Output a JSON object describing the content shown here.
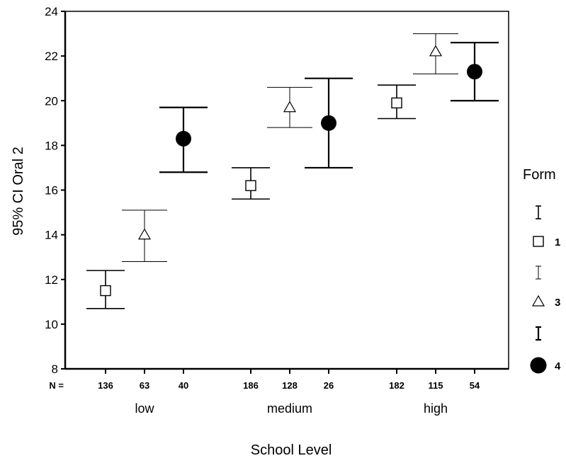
{
  "chart_data": {
    "type": "scatter",
    "subtype": "error-bar",
    "xlabel": "School Level",
    "ylabel": "95% CI Oral 2",
    "ylim": [
      8,
      24
    ],
    "yticks": [
      8,
      10,
      12,
      14,
      16,
      18,
      20,
      22,
      24
    ],
    "categories": [
      "low",
      "medium",
      "high"
    ],
    "n_prefix": "N =",
    "legend": {
      "title": "Form",
      "position": "right"
    },
    "series": [
      {
        "name": "1",
        "marker": "square",
        "n": [
          "136",
          "186",
          "182"
        ],
        "mean": [
          11.5,
          16.2,
          19.9
        ],
        "lower": [
          10.7,
          15.6,
          19.2
        ],
        "upper": [
          12.4,
          17.0,
          20.7
        ]
      },
      {
        "name": "3",
        "marker": "triangle",
        "n": [
          "63",
          "128",
          "115"
        ],
        "mean": [
          14.0,
          19.7,
          22.2
        ],
        "lower": [
          12.8,
          18.8,
          21.2
        ],
        "upper": [
          15.1,
          20.6,
          23.0
        ]
      },
      {
        "name": "4",
        "marker": "circle",
        "n": [
          "40",
          "26",
          "54"
        ],
        "mean": [
          18.3,
          19.0,
          21.3
        ],
        "lower": [
          16.8,
          17.0,
          20.0
        ],
        "upper": [
          19.7,
          21.0,
          22.6
        ]
      }
    ]
  }
}
